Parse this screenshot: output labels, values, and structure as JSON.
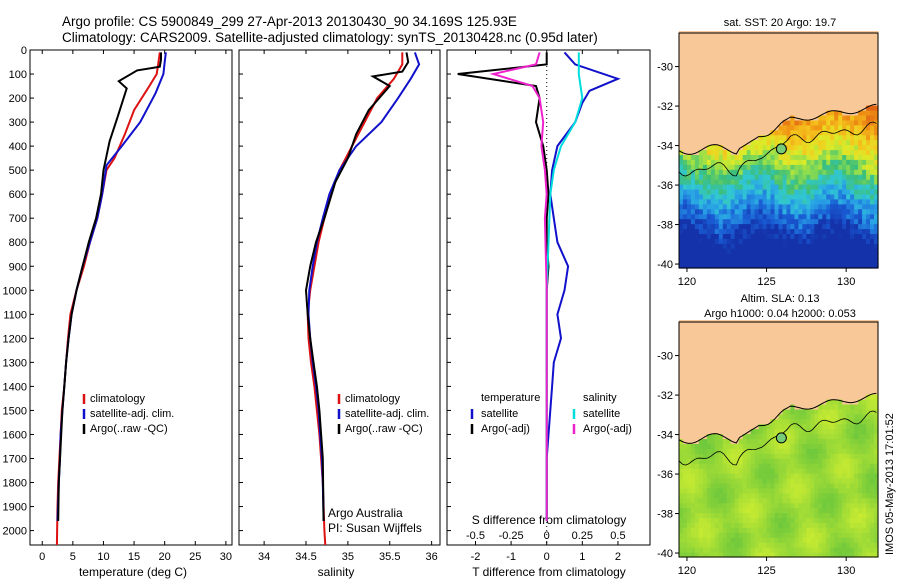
{
  "header": {
    "line1": "Argo profile: CS 5900849_299 27-Apr-2013 20130430_90 34.169S 125.93E",
    "line2": "Climatology: CARS2009. Satellite-adjusted climatology: synTS_20130428.nc (0.95d later)"
  },
  "colors": {
    "climatology": "#dd1111",
    "satellite": "#1111cc",
    "argo": "#000000",
    "sal_satellite": "#00dddd",
    "sal_argo": "#ee22cc",
    "land": "#f8c898"
  },
  "chart_data": [
    {
      "type": "line",
      "name": "temperature-profile",
      "xlabel": "temperature (deg C)",
      "ylabel": "",
      "xlim": [
        -2,
        31
      ],
      "ylim": [
        2060,
        0
      ],
      "xticks": [
        0,
        5,
        10,
        15,
        20,
        25,
        30
      ],
      "yticks": [
        0,
        100,
        200,
        300,
        400,
        500,
        600,
        700,
        800,
        900,
        1000,
        1100,
        1200,
        1300,
        1400,
        1500,
        1600,
        1700,
        1800,
        1900,
        2000
      ],
      "legend": [
        "climatology",
        "satellite-adj. clim.",
        "Argo(..raw -QC)"
      ],
      "series": [
        {
          "name": "climatology",
          "x": [
            19.2,
            19.0,
            18.7,
            17.5,
            15.0,
            13.5,
            11.8,
            10.5,
            9.8,
            9.0,
            7.8,
            6.8,
            5.6,
            4.6,
            4.2,
            3.9,
            3.6,
            3.2,
            3.0,
            2.8,
            2.6,
            2.5,
            2.4
          ],
          "y": [
            10,
            50,
            100,
            150,
            250,
            350,
            450,
            500,
            600,
            700,
            800,
            900,
            1000,
            1100,
            1200,
            1300,
            1400,
            1500,
            1600,
            1700,
            1800,
            1900,
            2060
          ]
        },
        {
          "name": "satellite-adj. clim.",
          "x": [
            20.2,
            20.0,
            19.8,
            18.5,
            16.0,
            13.0,
            10.5,
            9.8,
            9.0,
            7.8,
            6.6,
            5.6,
            4.8,
            4.3,
            3.9,
            3.6,
            3.3,
            3.0,
            2.9,
            2.7,
            2.5
          ],
          "y": [
            10,
            50,
            100,
            180,
            300,
            400,
            480,
            600,
            700,
            800,
            900,
            1000,
            1100,
            1200,
            1300,
            1400,
            1500,
            1600,
            1700,
            1800,
            1960
          ]
        },
        {
          "name": "Argo(..raw -QC)",
          "x": [
            19.4,
            19.4,
            19.2,
            15.5,
            12.5,
            13.8,
            12.3,
            11.0,
            10.0,
            9.6,
            8.8,
            7.6,
            6.6,
            5.6,
            4.8,
            4.3,
            3.9,
            3.6,
            3.3,
            3.1,
            2.9,
            2.7,
            2.6
          ],
          "y": [
            10,
            40,
            70,
            85,
            130,
            160,
            280,
            380,
            500,
            600,
            700,
            800,
            900,
            1000,
            1100,
            1200,
            1300,
            1400,
            1500,
            1600,
            1700,
            1800,
            1960
          ]
        }
      ]
    },
    {
      "type": "line",
      "name": "salinity-profile",
      "xlabel": "salinity",
      "ylabel": "",
      "xlim": [
        33.7,
        36.1
      ],
      "ylim": [
        2060,
        0
      ],
      "xticks": [
        34,
        34.5,
        35,
        35.5,
        36
      ],
      "xticklabels": [
        "34",
        "34.5",
        "35",
        "35.5",
        "36"
      ],
      "legend": [
        "climatology",
        "satellite-adj. clim.",
        "Argo(..raw -QC)"
      ],
      "annotation": [
        "Argo Australia",
        "PI: Susan Wijffels"
      ],
      "series": [
        {
          "name": "climatology",
          "x": [
            35.65,
            35.65,
            35.55,
            35.35,
            35.2,
            35.05,
            34.9,
            34.8,
            34.72,
            34.65,
            34.6,
            34.55,
            34.52,
            34.53,
            34.56,
            34.6,
            34.63,
            34.66,
            34.68,
            34.7,
            34.71,
            34.72,
            34.73
          ],
          "y": [
            10,
            60,
            120,
            200,
            300,
            400,
            500,
            600,
            700,
            800,
            900,
            1000,
            1100,
            1200,
            1300,
            1400,
            1500,
            1600,
            1700,
            1800,
            1900,
            2000,
            2060
          ]
        },
        {
          "name": "satellite-adj. clim.",
          "x": [
            35.8,
            35.85,
            35.75,
            35.6,
            35.4,
            35.1,
            34.9,
            34.78,
            34.7,
            34.63,
            34.58,
            34.54,
            34.53,
            34.55,
            34.58,
            34.62,
            34.65,
            34.67,
            34.69,
            34.7,
            34.71
          ],
          "y": [
            10,
            60,
            120,
            200,
            300,
            400,
            500,
            600,
            700,
            800,
            900,
            1000,
            1100,
            1200,
            1300,
            1400,
            1500,
            1600,
            1700,
            1800,
            1960
          ]
        },
        {
          "name": "Argo(..raw -QC)",
          "x": [
            35.7,
            35.72,
            35.65,
            35.3,
            35.5,
            35.25,
            35.1,
            35.0,
            34.85,
            34.72,
            34.62,
            34.55,
            34.5,
            34.52,
            34.55,
            34.59,
            34.63,
            34.66,
            34.68,
            34.7,
            34.71
          ],
          "y": [
            10,
            50,
            90,
            110,
            150,
            250,
            350,
            450,
            550,
            700,
            800,
            900,
            1000,
            1100,
            1200,
            1300,
            1400,
            1500,
            1600,
            1700,
            1960
          ]
        }
      ]
    },
    {
      "type": "line",
      "name": "difference-profile",
      "xlabel": "T difference from climatology",
      "xlabel_top": "S difference from climatology",
      "xlim": [
        -2.8,
        2.9
      ],
      "ylim": [
        2060,
        0
      ],
      "xticks": [
        -2,
        -1,
        0,
        1,
        2
      ],
      "xticks_s": [
        -0.5,
        -0.25,
        0,
        0.25,
        0.5
      ],
      "xticklabels_s": [
        "-0.5",
        "-0.25",
        "0",
        "0.25",
        "0.5"
      ],
      "legend_temperature_title": "temperature",
      "legend_salinity_title": "salinity",
      "legend_temperature": [
        "satellite",
        "Argo(-adj)"
      ],
      "legend_salinity": [
        "satellite",
        "Argo(-adj)"
      ],
      "series": [
        {
          "name": "temperature satellite",
          "x": [
            0.5,
            0.8,
            2.0,
            1.2,
            1.0,
            0.8,
            0.3,
            0.15,
            0.1,
            0.2,
            0.3,
            0.6,
            0.5,
            0.3,
            0.4,
            0.2,
            0.15,
            0.1,
            0.05,
            0.0,
            0.0
          ],
          "y": [
            10,
            60,
            120,
            170,
            220,
            300,
            400,
            500,
            600,
            700,
            800,
            900,
            1000,
            1100,
            1200,
            1300,
            1400,
            1500,
            1600,
            1700,
            1960
          ]
        },
        {
          "name": "temperature Argo(-adj)",
          "x": [
            0.0,
            0.0,
            -2.5,
            -0.3,
            -0.2,
            -0.3,
            -0.1,
            0.0,
            0.05,
            0.0,
            0.0,
            0.05,
            0.0,
            0.0,
            0.0,
            0.0
          ],
          "y": [
            10,
            60,
            100,
            150,
            200,
            300,
            400,
            500,
            600,
            700,
            800,
            900,
            1000,
            1200,
            1500,
            1960
          ]
        },
        {
          "name": "salinity satellite",
          "x": [
            0.9,
            0.9,
            1.0,
            0.8,
            0.4,
            0.2,
            0.1,
            0.05,
            0.0,
            0.0,
            0.0
          ],
          "y": [
            10,
            100,
            200,
            300,
            400,
            500,
            600,
            800,
            1000,
            1400,
            1960
          ]
        },
        {
          "name": "salinity Argo(-adj)",
          "x": [
            -0.2,
            -0.3,
            -1.5,
            -0.4,
            -0.2,
            -0.1,
            -0.15,
            -0.05,
            0.0,
            -0.05,
            0.0,
            0.0
          ],
          "y": [
            10,
            60,
            100,
            150,
            200,
            300,
            400,
            500,
            600,
            700,
            1000,
            1960
          ]
        }
      ]
    },
    {
      "type": "heatmap",
      "name": "sst-map",
      "title": "sat. SST: 20 Argo: 19.7",
      "xlim": [
        119.5,
        132
      ],
      "ylim": [
        -40.2,
        -28.3
      ],
      "xticks": [
        120,
        125,
        130
      ],
      "yticks": [
        -30,
        -32,
        -34,
        -36,
        -38,
        -40
      ],
      "argo_position": {
        "lon": 125.93,
        "lat": -34.169
      }
    },
    {
      "type": "heatmap",
      "name": "sla-map",
      "title_line1": "Altim. SLA: 0.13",
      "title_line2": "Argo h1000: 0.04 h2000: 0.053",
      "xlim": [
        119.5,
        132
      ],
      "ylim": [
        -40.2,
        -28.3
      ],
      "xticks": [
        120,
        125,
        130
      ],
      "yticks": [
        -30,
        -32,
        -34,
        -36,
        -38,
        -40
      ],
      "argo_position": {
        "lon": 125.93,
        "lat": -34.169
      }
    }
  ],
  "footer": {
    "credit": "IMOS 05-May-2013 17:01:52"
  }
}
